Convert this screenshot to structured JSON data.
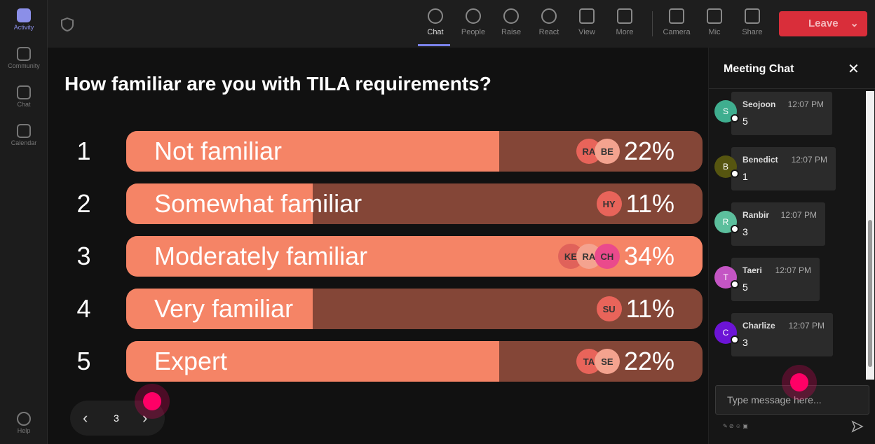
{
  "sidebar": {
    "items": [
      "Activity",
      "Community",
      "Chat",
      "Calendar"
    ],
    "help": "Help"
  },
  "toolbar": {
    "items": [
      "Chat",
      "People",
      "Raise",
      "React",
      "View",
      "More",
      "Camera",
      "Mic",
      "Share"
    ],
    "leave": "Leave"
  },
  "poll": {
    "question": "How familiar are you with TILA requirements?",
    "page": "3",
    "options": [
      {
        "number": "1",
        "label": "Not familiar",
        "voters": [
          {
            "initials": "RA",
            "color": "#e8645a"
          },
          {
            "initials": "BE",
            "color": "#f4a38f"
          }
        ],
        "percent": {
          "value": 22,
          "label": "22%"
        }
      },
      {
        "number": "2",
        "label": "Somewhat familiar",
        "voters": [
          {
            "initials": "HY",
            "color": "#e8645a"
          }
        ],
        "percent": {
          "value": 11,
          "label": "11%"
        }
      },
      {
        "number": "3",
        "label": "Moderately familiar",
        "voters": [
          {
            "initials": "KE",
            "color": "#e0625a"
          },
          {
            "initials": "RA",
            "color": "#f4a38f"
          },
          {
            "initials": "CH",
            "color": "#ea4a8c"
          }
        ],
        "percent": {
          "value": 34,
          "label": "34%"
        }
      },
      {
        "number": "4",
        "label": "Very familiar",
        "voters": [
          {
            "initials": "SU",
            "color": "#e8645a"
          }
        ],
        "percent": {
          "value": 11,
          "label": "11%"
        }
      },
      {
        "number": "5",
        "label": "Expert",
        "voters": [
          {
            "initials": "TA",
            "color": "#e8645a"
          },
          {
            "initials": "SE",
            "color": "#f4a38f"
          }
        ],
        "percent": {
          "value": 22,
          "label": "22%"
        }
      }
    ]
  },
  "chat": {
    "title": "Meeting Chat",
    "input_placeholder": "Type message here...",
    "messages": [
      {
        "initial": "S",
        "name": "Seojoon",
        "time": "12:07 PM",
        "text": "5",
        "color": "#3fae8f"
      },
      {
        "initial": "B",
        "name": "Benedict",
        "time": "12:07 PM",
        "text": "1",
        "color": "#565510"
      },
      {
        "initial": "R",
        "name": "Ranbir",
        "time": "12:07 PM",
        "text": "3",
        "color": "#5cbf9d"
      },
      {
        "initial": "T",
        "name": "Taeri",
        "time": "12:07 PM",
        "text": "5",
        "color": "#c455c4"
      },
      {
        "initial": "C",
        "name": "Charlize",
        "time": "12:07 PM",
        "text": "3",
        "color": "#6c14d6"
      }
    ]
  }
}
